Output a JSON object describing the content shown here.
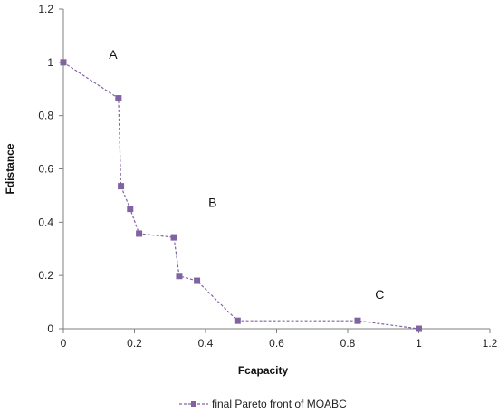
{
  "chart_data": {
    "type": "line",
    "title": "",
    "xlabel": "Fcapacity",
    "ylabel": "Fdistance",
    "xlim": [
      0,
      1.2
    ],
    "ylim": [
      0,
      1.2
    ],
    "xticks": [
      0,
      0.2,
      0.4,
      0.6,
      0.8,
      1,
      1.2
    ],
    "yticks": [
      0,
      0.2,
      0.4,
      0.6,
      0.8,
      1,
      1.2
    ],
    "tick_labels": [
      "0",
      "0.2",
      "0.4",
      "0.6",
      "0.8",
      "1",
      "1.2"
    ],
    "grid": false,
    "legend_position": "bottom",
    "series": [
      {
        "name": "final Pareto front of MOABC",
        "color": "#8064a2",
        "line_style": "dashed",
        "marker": "square",
        "x": [
          0,
          0.155,
          0.162,
          0.188,
          0.213,
          0.311,
          0.326,
          0.376,
          0.49,
          0.828,
          1.0
        ],
        "y": [
          1.0,
          0.865,
          0.535,
          0.45,
          0.357,
          0.343,
          0.198,
          0.18,
          0.03,
          0.03,
          0.0
        ]
      }
    ],
    "annotations": [
      {
        "text": "A",
        "x": 0.14,
        "y": 1.03
      },
      {
        "text": "B",
        "x": 0.42,
        "y": 0.475
      },
      {
        "text": "C",
        "x": 0.89,
        "y": 0.13
      }
    ]
  }
}
